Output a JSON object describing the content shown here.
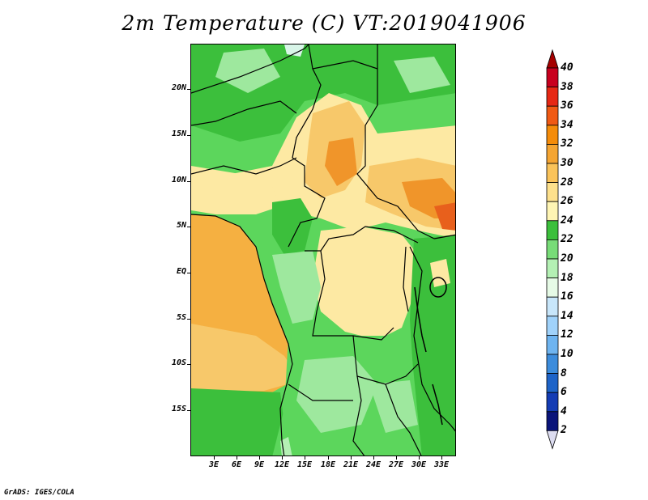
{
  "title": "2m Temperature (C) VT:2019041906",
  "footer": "GrADS: IGES/COLA",
  "map": {
    "lat_labels": [
      "20N",
      "15N",
      "10N",
      "5N",
      "EQ",
      "5S",
      "10S",
      "15S"
    ],
    "lon_labels": [
      "3E",
      "6E",
      "9E",
      "12E",
      "15E",
      "18E",
      "21E",
      "24E",
      "27E",
      "30E",
      "33E"
    ],
    "colors": {
      "ocean_warm": "#f5b041",
      "ocean_mid": "#f7c86a",
      "land_green": "#5cd65c",
      "land_green_dark": "#3cbf3c",
      "land_green_light": "#9ee89e",
      "land_yellow": "#fde9a3",
      "land_orange": "#f7c86a",
      "land_deep_orange": "#f0952a",
      "land_red": "#e8601c",
      "cool": "#d8f5e8"
    }
  },
  "colorbar": {
    "labels": [
      "40",
      "38",
      "36",
      "34",
      "32",
      "30",
      "28",
      "26",
      "24",
      "22",
      "20",
      "18",
      "16",
      "14",
      "12",
      "10",
      "8",
      "6",
      "4",
      "2"
    ],
    "colors": [
      "#a50000",
      "#c8001e",
      "#e62814",
      "#f05a14",
      "#f58c0a",
      "#f5a532",
      "#fac35a",
      "#fde08c",
      "#fff5b4",
      "#3cbf3c",
      "#78dc78",
      "#b4f0b4",
      "#e6fae6",
      "#c8e6fa",
      "#a0d2fa",
      "#6eb4f0",
      "#3c8cdc",
      "#1e64c8",
      "#143cb4",
      "#0a147a"
    ],
    "bottom_color": "#dcdcf0"
  }
}
